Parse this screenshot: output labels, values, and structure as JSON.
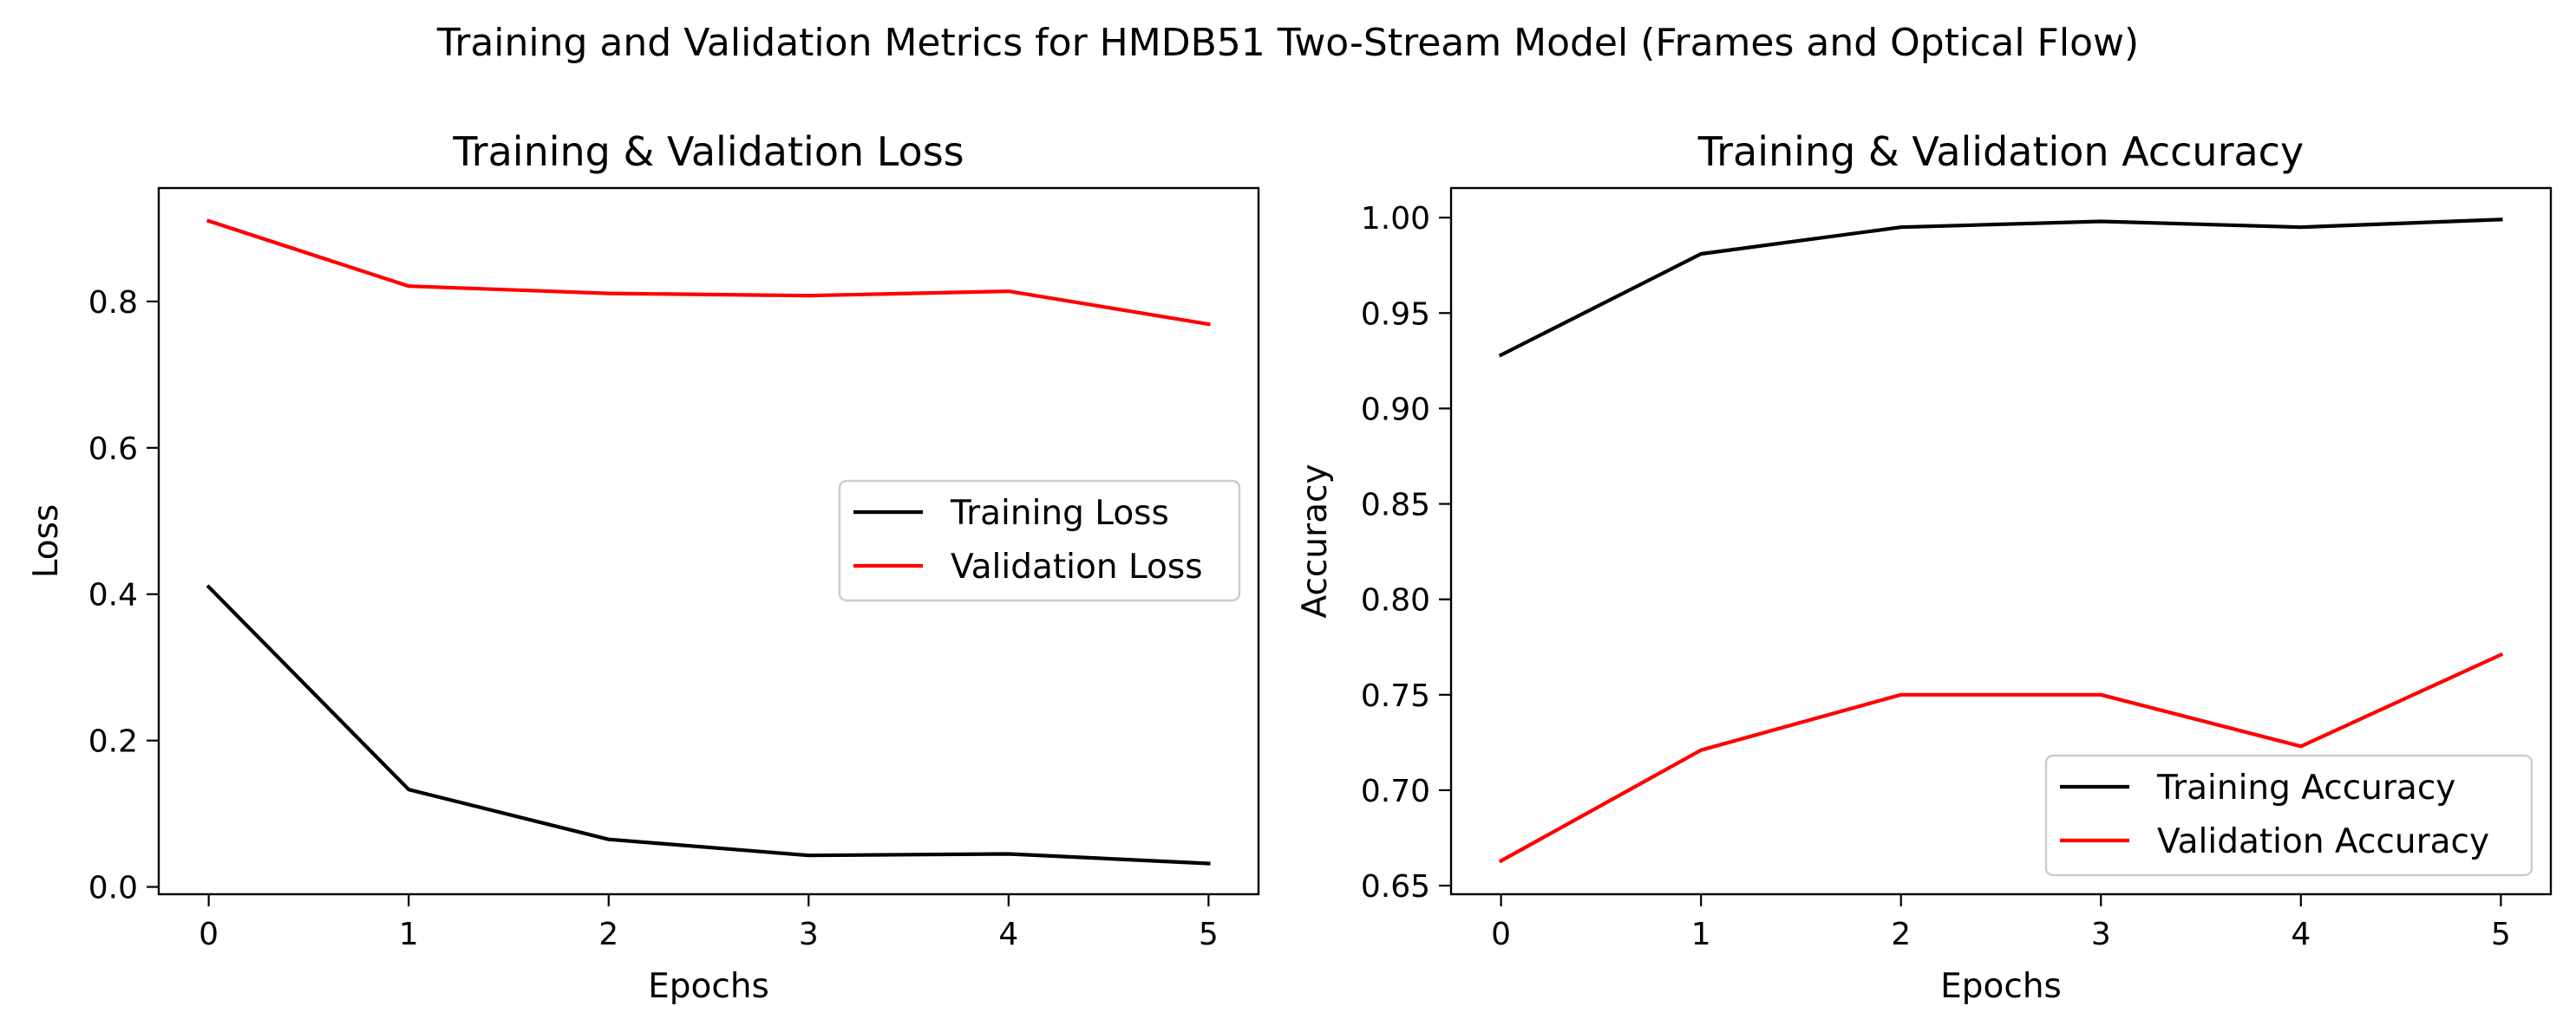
{
  "suptitle": "Training and Validation Metrics for HMDB51 Two-Stream Model (Frames and Optical Flow)",
  "colors": {
    "training": "#000000",
    "validation": "#ff0000",
    "legend_border": "#cccccc"
  },
  "chart_data": [
    {
      "type": "line",
      "title": "Training & Validation Loss",
      "xlabel": "Epochs",
      "ylabel": "Loss",
      "x": [
        0,
        1,
        2,
        3,
        4,
        5
      ],
      "xlim": [
        -0.25,
        5.25
      ],
      "ylim": [
        -0.01,
        0.955
      ],
      "xticks": [
        0,
        1,
        2,
        3,
        4,
        5
      ],
      "xtick_labels": [
        "0",
        "1",
        "2",
        "3",
        "4",
        "5"
      ],
      "yticks": [
        0.0,
        0.2,
        0.4,
        0.6,
        0.8
      ],
      "ytick_labels": [
        "0.0",
        "0.2",
        "0.4",
        "0.6",
        "0.8"
      ],
      "legend_position": "center-right",
      "grid": false,
      "series": [
        {
          "name": "Training Loss",
          "color": "#000000",
          "values": [
            0.41,
            0.133,
            0.065,
            0.043,
            0.045,
            0.032
          ]
        },
        {
          "name": "Validation Loss",
          "color": "#ff0000",
          "values": [
            0.91,
            0.821,
            0.811,
            0.808,
            0.814,
            0.769
          ]
        }
      ]
    },
    {
      "type": "line",
      "title": "Training & Validation Accuracy",
      "xlabel": "Epochs",
      "ylabel": "Accuracy",
      "x": [
        0,
        1,
        2,
        3,
        4,
        5
      ],
      "xlim": [
        -0.25,
        5.25
      ],
      "ylim": [
        0.6455,
        1.0155
      ],
      "xticks": [
        0,
        1,
        2,
        3,
        4,
        5
      ],
      "xtick_labels": [
        "0",
        "1",
        "2",
        "3",
        "4",
        "5"
      ],
      "yticks": [
        0.65,
        0.7,
        0.75,
        0.8,
        0.85,
        0.9,
        0.95,
        1.0
      ],
      "ytick_labels": [
        "0.65",
        "0.70",
        "0.75",
        "0.80",
        "0.85",
        "0.90",
        "0.95",
        "1.00"
      ],
      "legend_position": "lower-right",
      "grid": false,
      "series": [
        {
          "name": "Training Accuracy",
          "color": "#000000",
          "values": [
            0.928,
            0.981,
            0.995,
            0.998,
            0.995,
            0.999
          ]
        },
        {
          "name": "Validation Accuracy",
          "color": "#ff0000",
          "values": [
            0.663,
            0.721,
            0.75,
            0.75,
            0.723,
            0.771
          ]
        }
      ]
    }
  ]
}
